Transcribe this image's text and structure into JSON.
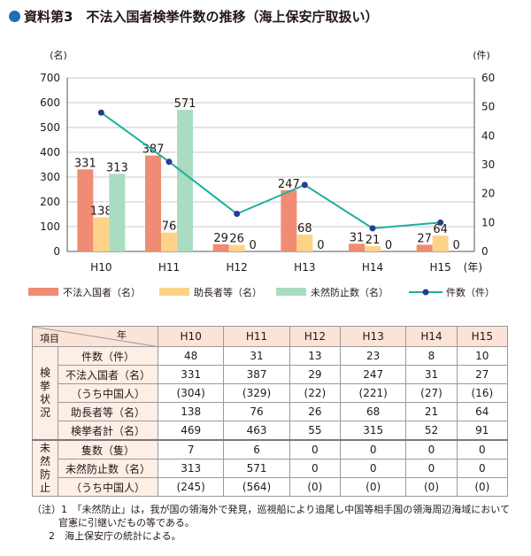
{
  "title": "資料第3　不法入国者検挙件数の推移（海上保安庁取扱い）",
  "chart_data": {
    "type": "bar+line",
    "categories": [
      "H10",
      "H11",
      "H12",
      "H13",
      "H14",
      "H15"
    ],
    "x_suffix": "(年)",
    "ylabel_left": "(名)",
    "ylabel_right": "(件)",
    "ylim_left": [
      0,
      700
    ],
    "yticks_left": [
      0,
      100,
      200,
      300,
      400,
      500,
      600,
      700
    ],
    "ylim_right": [
      0,
      60
    ],
    "yticks_right": [
      0,
      10,
      20,
      30,
      40,
      50,
      60
    ],
    "grid": true,
    "series": [
      {
        "name": "不法入国者（名）",
        "type": "bar",
        "axis": "left",
        "color": "#f08c73",
        "values": [
          331,
          387,
          29,
          247,
          31,
          27
        ]
      },
      {
        "name": "助長者等（名）",
        "type": "bar",
        "axis": "left",
        "color": "#fdd38a",
        "values": [
          138,
          76,
          26,
          68,
          21,
          64
        ]
      },
      {
        "name": "未然防止数（名）",
        "type": "bar",
        "axis": "left",
        "color": "#a9dcc0",
        "values": [
          313,
          571,
          0,
          0,
          0,
          0
        ]
      },
      {
        "name": "件数（件）",
        "type": "line",
        "axis": "right",
        "color": "#1fae9e",
        "marker_color": "#2b3990",
        "values": [
          48,
          31,
          13,
          23,
          8,
          10
        ]
      }
    ]
  },
  "table": {
    "corner_top": "年",
    "corner_bottom": "項目",
    "years": [
      "H10",
      "H11",
      "H12",
      "H13",
      "H14",
      "H15"
    ],
    "groups": [
      {
        "label": [
          "検",
          "挙",
          "状",
          "況"
        ],
        "rows": [
          {
            "label": "件数（件）",
            "values": [
              "48",
              "31",
              "13",
              "23",
              "8",
              "10"
            ]
          },
          {
            "label": "不法入国者（名）",
            "values": [
              "331",
              "387",
              "29",
              "247",
              "31",
              "27"
            ]
          },
          {
            "label": "（うち中国人）",
            "values": [
              "(304)",
              "(329)",
              "(22)",
              "(221)",
              "(27)",
              "(16)"
            ]
          },
          {
            "label": "助長者等（名）",
            "values": [
              "138",
              "76",
              "26",
              "68",
              "21",
              "64"
            ]
          },
          {
            "label": "検挙者計（名）",
            "values": [
              "469",
              "463",
              "55",
              "315",
              "52",
              "91"
            ]
          }
        ]
      },
      {
        "label": [
          "未",
          "然",
          "防",
          "止"
        ],
        "rows": [
          {
            "label": "隻数（隻）",
            "values": [
              "7",
              "6",
              "0",
              "0",
              "0",
              "0"
            ]
          },
          {
            "label": "未然防止数（名）",
            "values": [
              "313",
              "571",
              "0",
              "0",
              "0",
              "0"
            ]
          },
          {
            "label": "（うち中国人）",
            "values": [
              "(245)",
              "(564)",
              "(0)",
              "(0)",
              "(0)",
              "(0)"
            ]
          }
        ]
      }
    ]
  },
  "notes": [
    "（注）1　「未然防止」は，我が国の領海外で発見，巡視船により追尾し中国等相手国の領海周辺海域において",
    "官憲に引継いだもの等である。",
    "2　海上保安庁の統計による。"
  ]
}
